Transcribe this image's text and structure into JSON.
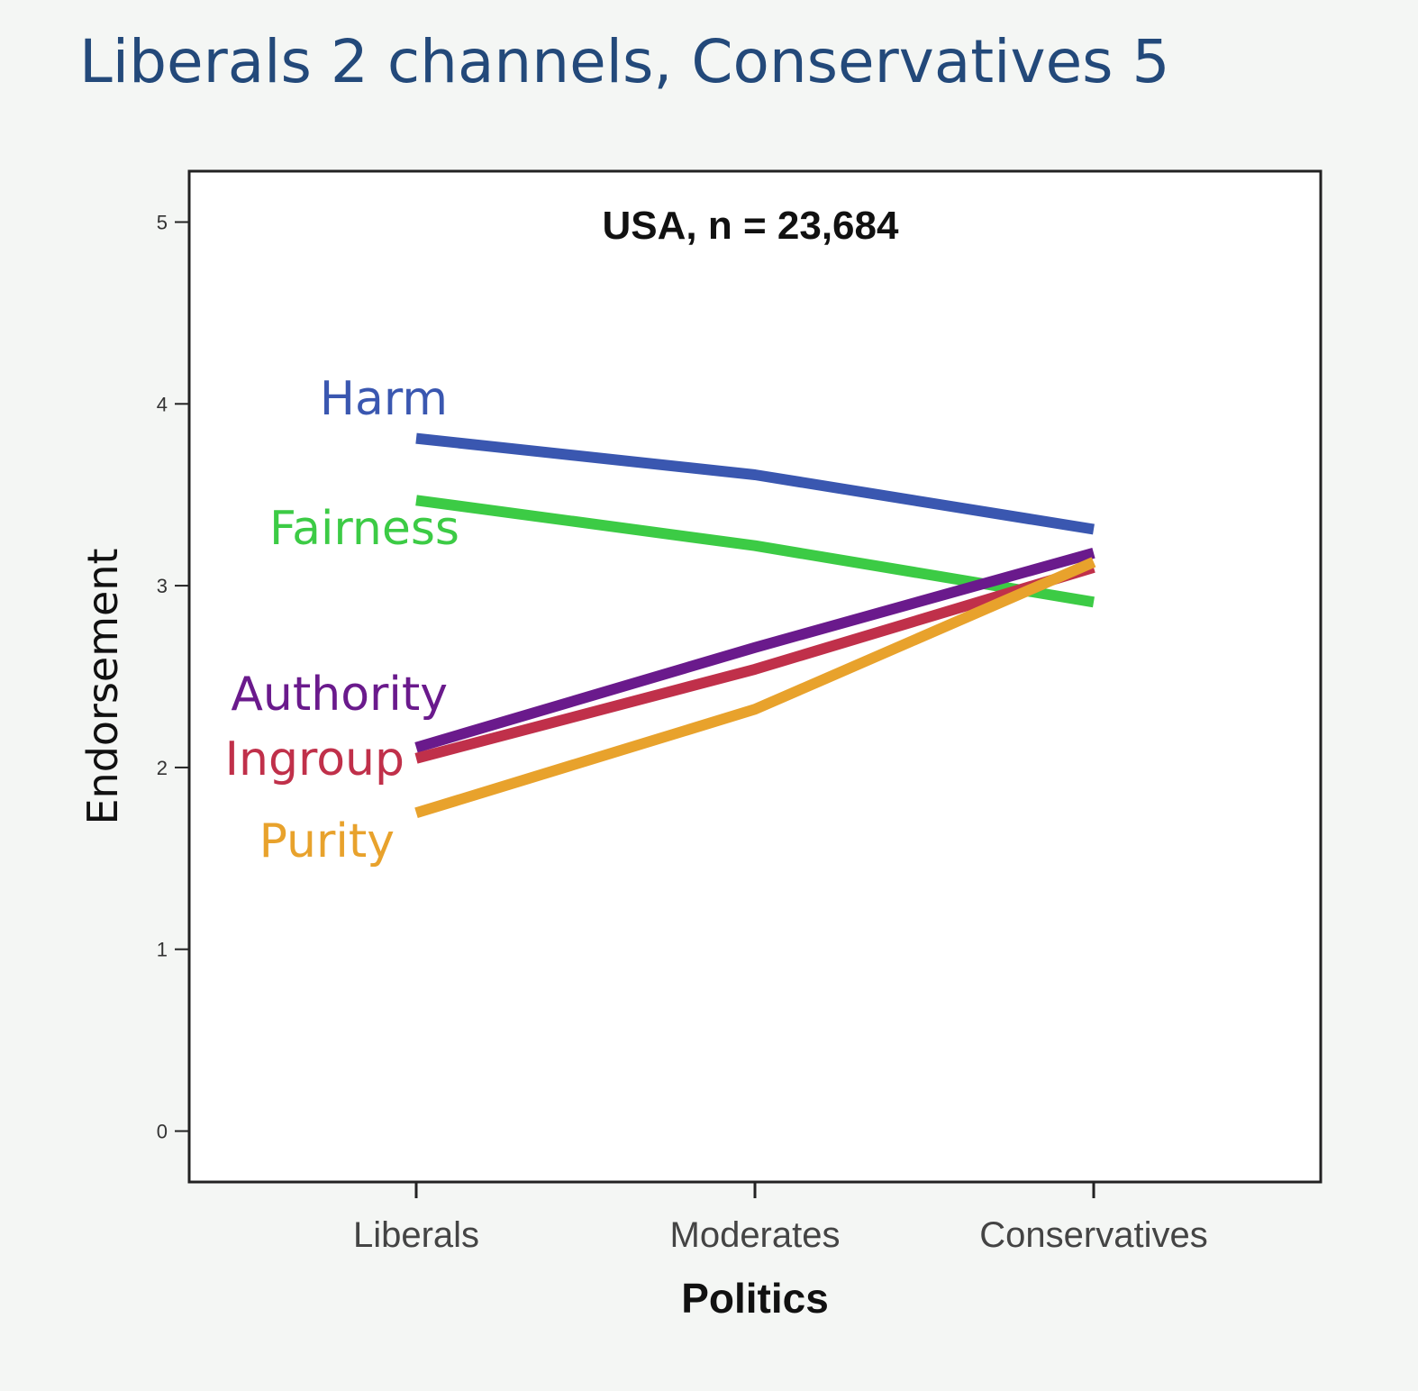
{
  "slide": {
    "title": "Liberals 2 channels, Conservatives 5"
  },
  "chart_data": {
    "type": "line",
    "title": "USA, n = 23,684",
    "xlabel": "Politics",
    "ylabel": "Endorsement",
    "categories": [
      "Liberals",
      "Moderates",
      "Conservatives"
    ],
    "ylim": [
      -0.28,
      5.28
    ],
    "yticks": [
      0,
      1,
      2,
      3,
      4,
      5
    ],
    "grid": false,
    "legend": "inline labels at left of lines",
    "series": [
      {
        "name": "Harm",
        "color": "#3a57b0",
        "values": [
          3.81,
          3.61,
          3.31
        ]
      },
      {
        "name": "Fairness",
        "color": "#3ccb45",
        "values": [
          3.47,
          3.22,
          2.91
        ]
      },
      {
        "name": "Authority",
        "color": "#6a1a8c",
        "values": [
          2.11,
          2.66,
          3.18
        ]
      },
      {
        "name": "Ingroup",
        "color": "#c0304a",
        "values": [
          2.05,
          2.54,
          3.1
        ]
      },
      {
        "name": "Purity",
        "color": "#e8a22c",
        "values": [
          1.75,
          2.32,
          3.13
        ]
      }
    ]
  }
}
